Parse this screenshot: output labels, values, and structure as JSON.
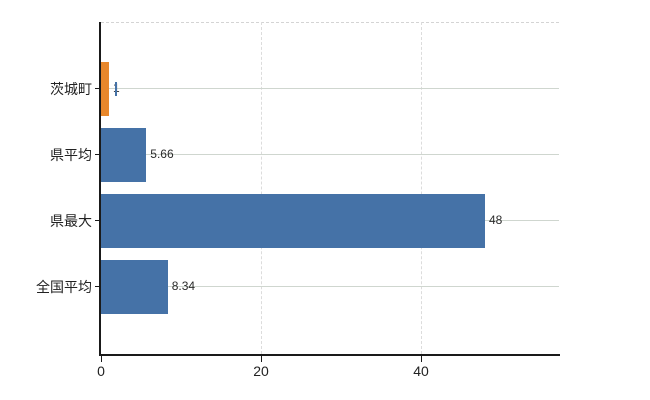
{
  "chart_data": {
    "type": "bar",
    "orientation": "horizontal",
    "title": "",
    "xlabel": "",
    "ylabel": "",
    "categories": [
      "茨城町",
      "県平均",
      "県最大",
      "全国平均"
    ],
    "values": [
      1,
      5.66,
      48,
      8.34
    ],
    "value_labels": [
      "1",
      "5.66",
      "48",
      "8.34"
    ],
    "bar_colors": [
      "#E8872B",
      "#4572A7",
      "#4572A7",
      "#4572A7"
    ],
    "xlim": [
      0,
      57.25
    ],
    "x_ticks": [
      0,
      20,
      40
    ],
    "x_tick_labels": [
      "0",
      "20",
      "40"
    ],
    "grid": {
      "horizontal": "solid",
      "vertical": "dashed",
      "top_border": "dashed"
    },
    "legend": "none",
    "annotations": [
      {
        "type": "vertical-mark",
        "category_index": 0,
        "x_value": 1.7,
        "color": "#4572A7"
      }
    ]
  },
  "colors": {
    "background": "#ffffff",
    "axis": "#1a1a1a",
    "grid_horizontal": "#cfd6cf",
    "grid_vertical": "#dcdcdc",
    "top_border": "#d4d4d4",
    "category_text": "#222222",
    "value_text": "#2b2b2b",
    "bar_blue": "#4572A7",
    "bar_orange": "#E8872B"
  }
}
